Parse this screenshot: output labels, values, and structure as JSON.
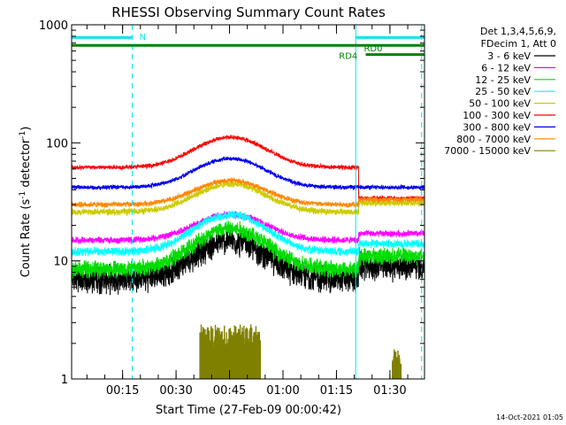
{
  "chart_data": {
    "type": "line",
    "title": "RHESSI Observing Summary Count Rates",
    "xlabel": "Start Time (27-Feb-09 00:00:42)",
    "ylabel_main": "Count Rate (s",
    "ylabel_sup1": "-1",
    "ylabel_mid": " detector",
    "ylabel_sup2": "-1",
    "ylabel_end": ")",
    "x_unit": "minutes after 00:00:42",
    "xlim": [
      0,
      99
    ],
    "ylim": [
      1,
      1000
    ],
    "yscale": "log",
    "x_ticks": [
      {
        "label": "00:15",
        "minute": 14.3
      },
      {
        "label": "00:30",
        "minute": 29.3
      },
      {
        "label": "00:45",
        "minute": 44.3
      },
      {
        "label": "01:00",
        "minute": 59.3
      },
      {
        "label": "01:15",
        "minute": 74.3
      },
      {
        "label": "01:30",
        "minute": 89.3
      }
    ],
    "y_ticks": [
      {
        "label": "1",
        "value": 1
      },
      {
        "label": "10",
        "value": 10
      },
      {
        "label": "100",
        "value": 100
      },
      {
        "label": "1000",
        "value": 1000
      }
    ],
    "legend_header": [
      "Det 1,3,4,5,6,9,",
      "FDecim 1, Att 0"
    ],
    "legend_placement": "right",
    "series": [
      {
        "name": "3 - 6 keV",
        "color": "#000000",
        "base": 7.0,
        "after": 9.0,
        "peak": 2.1,
        "noise": 0.13
      },
      {
        "name": "6 - 12 keV",
        "color": "#ff00ff",
        "base": 15.0,
        "after": 17.0,
        "peak": 1.65,
        "noise": 0.03
      },
      {
        "name": "12 - 25 keV",
        "color": "#00dd00",
        "base": 8.5,
        "after": 11.0,
        "peak": 2.2,
        "noise": 0.08
      },
      {
        "name": "25 - 50 keV",
        "color": "#00ffff",
        "base": 12.0,
        "after": 14.0,
        "peak": 2.05,
        "noise": 0.04
      },
      {
        "name": "50 - 100 keV",
        "color": "#cccc00",
        "base": 26.0,
        "after": 31.0,
        "peak": 1.72,
        "noise": 0.03
      },
      {
        "name": "100 - 300 keV",
        "color": "#ff0000",
        "base": 62.0,
        "after": 34.0,
        "peak": 1.8,
        "noise": 0.02
      },
      {
        "name": "300 - 800 keV",
        "color": "#0000ee",
        "base": 42.0,
        "after": 42.0,
        "peak": 1.75,
        "noise": 0.02
      },
      {
        "name": "800 - 7000 keV",
        "color": "#ff8800",
        "base": 30.0,
        "after": 33.0,
        "peak": 1.6,
        "noise": 0.025
      },
      {
        "name": "7000 - 15000 keV",
        "color": "#808000",
        "base": 0,
        "after": 0,
        "peak": 0,
        "noise": 0
      }
    ],
    "flare_peak_minute": 44.5,
    "flare_width_minutes": 9,
    "attenuator_change_minute": 80.5,
    "vertical_markers": [
      {
        "minute": 17.0,
        "style": "dashed",
        "color": "#00e5ee"
      },
      {
        "minute": 79.7,
        "style": "solid",
        "color": "#00e5ee"
      },
      {
        "minute": 98.2,
        "style": "dashed",
        "color": "#00e5ee"
      }
    ],
    "flags": [
      {
        "label": "N",
        "color": "#00e5ee",
        "value": 780,
        "segments": [
          [
            0,
            17.0
          ],
          [
            79.7,
            99
          ]
        ],
        "label_minute": 19.0,
        "label_value": 800
      },
      {
        "label": "RD0",
        "color": "#008000",
        "value": 670,
        "segments": [
          [
            0,
            99
          ]
        ],
        "label_minute": 82.0,
        "label_value": 640
      },
      {
        "label": "RD4",
        "color": "#008000",
        "value": 560,
        "segments": [
          [
            82.5,
            99
          ]
        ],
        "label_minute": 75.0,
        "label_value": 550
      }
    ],
    "high_energy_bursts": [
      {
        "from": 36.0,
        "to": 53.0,
        "max": 2.9
      },
      {
        "from": 90.0,
        "to": 92.5,
        "max": 1.8
      }
    ],
    "grid": false
  },
  "footer": {
    "timestamp": "14-Oct-2021 01:05"
  }
}
